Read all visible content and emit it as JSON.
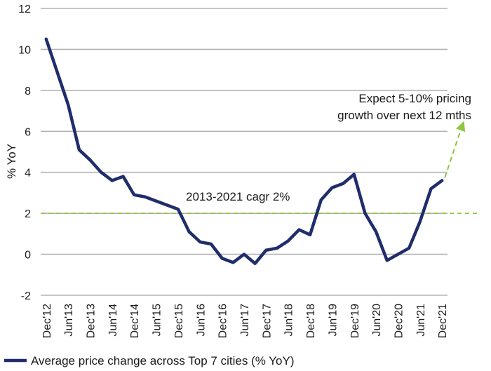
{
  "chart_data": {
    "type": "line",
    "ylabel": "% YoY",
    "ylim": [
      -2,
      12
    ],
    "yticks": [
      -2,
      0,
      2,
      4,
      6,
      8,
      10,
      12
    ],
    "xticks": [
      "Dec'12",
      "Jun'13",
      "Dec'13",
      "Jun'14",
      "Dec'14",
      "Jun'15",
      "Dec'15",
      "Jun'16",
      "Dec'16",
      "Jun'17",
      "Dec'17",
      "Jun'18",
      "Dec'18",
      "Jun'19",
      "Dec'19",
      "Jun'20",
      "Dec'20",
      "Jun'21",
      "Dec'21"
    ],
    "grid": "horizontal",
    "colors": {
      "series": "#1f2d6b",
      "reference": "#8dc63f",
      "grid": "#b3b3b3"
    },
    "series": [
      {
        "name": "Average price change across Top 7 cities (% YoY)",
        "x": [
          "Dec'12",
          "Mar'13",
          "Jun'13",
          "Sep'13",
          "Dec'13",
          "Mar'14",
          "Jun'14",
          "Sep'14",
          "Dec'14",
          "Mar'15",
          "Jun'15",
          "Sep'15",
          "Dec'15",
          "Mar'16",
          "Jun'16",
          "Sep'16",
          "Dec'16",
          "Mar'17",
          "Jun'17",
          "Sep'17",
          "Dec'17",
          "Mar'18",
          "Jun'18",
          "Sep'18",
          "Dec'18",
          "Mar'19",
          "Jun'19",
          "Sep'19",
          "Dec'19",
          "Mar'20",
          "Jun'20",
          "Sep'20",
          "Dec'20",
          "Mar'21",
          "Jun'21",
          "Sep'21",
          "Dec'21"
        ],
        "values": [
          10.5,
          8.9,
          7.3,
          5.1,
          4.6,
          4.0,
          3.6,
          3.8,
          2.9,
          2.8,
          2.6,
          2.4,
          2.2,
          1.1,
          0.6,
          0.5,
          -0.2,
          -0.4,
          0.0,
          -0.45,
          0.2,
          0.3,
          0.65,
          1.2,
          0.95,
          2.65,
          3.25,
          3.45,
          3.9,
          2.0,
          1.1,
          -0.3,
          0.0,
          0.3,
          1.6,
          3.2,
          3.6
        ]
      }
    ],
    "reference_line": {
      "value": 2,
      "label": "2013-2021 cagr 2%"
    },
    "projection": {
      "from": {
        "x": "Dec'21",
        "value": 3.6
      },
      "to": {
        "x": "Jun'22",
        "value": 6.5
      }
    },
    "annotation": {
      "lines": [
        "Expect 5-10% pricing",
        "growth over next 12 mths"
      ]
    },
    "legend": {
      "position": "bottom-left",
      "label": "Average price change across Top 7 cities (% YoY)"
    }
  }
}
